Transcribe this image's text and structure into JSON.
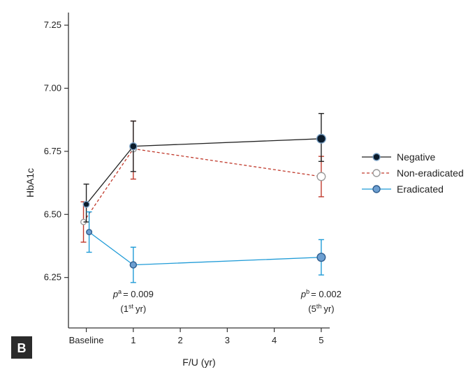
{
  "panel_letter": "B",
  "colors": {
    "negative": "#222222",
    "non_eradicated": "#c0392b",
    "eradicated": "#1f9bd7",
    "axis": "#333333"
  },
  "chart_data": {
    "type": "line",
    "xlabel": "F/U (yr)",
    "ylabel": "HbA1c",
    "x_ticks": [
      {
        "x": 0,
        "label": "Baseline"
      },
      {
        "x": 1,
        "label": "1"
      },
      {
        "x": 2,
        "label": "2"
      },
      {
        "x": 3,
        "label": "3"
      },
      {
        "x": 4,
        "label": "4"
      },
      {
        "x": 5,
        "label": "5"
      }
    ],
    "y_ticks": [
      "6.25",
      "6.50",
      "6.75",
      "7.00",
      "7.25"
    ],
    "ylim": [
      6.05,
      7.3
    ],
    "xlim": [
      -0.38,
      5.18
    ],
    "legend_position": "right",
    "series": [
      {
        "name": "Negative",
        "style": "solid",
        "marker": "filled-dark",
        "x": [
          0,
          1,
          5
        ],
        "y": [
          6.54,
          6.77,
          6.8
        ],
        "err_low": [
          6.47,
          6.67,
          6.71
        ],
        "err_high": [
          6.62,
          6.87,
          6.9
        ]
      },
      {
        "name": "Non-eradicated",
        "style": "dashed",
        "marker": "open",
        "x": [
          0,
          1,
          5
        ],
        "y": [
          6.47,
          6.76,
          6.65
        ],
        "err_low": [
          6.39,
          6.64,
          6.57
        ],
        "err_high": [
          6.55,
          6.87,
          6.73
        ]
      },
      {
        "name": "Eradicated",
        "style": "solid",
        "marker": "filled-blue",
        "x": [
          0,
          1,
          5
        ],
        "y": [
          6.43,
          6.3,
          6.33
        ],
        "err_low": [
          6.35,
          6.23,
          6.26
        ],
        "err_high": [
          6.51,
          6.37,
          6.4
        ]
      }
    ],
    "annotations": [
      {
        "x": 1,
        "p_sup": "a",
        "p_value": "= 0.009",
        "period_num": "1",
        "period_sup": "st",
        "period_unit": "yr"
      },
      {
        "x": 5,
        "p_sup": "b",
        "p_value": "= 0.002",
        "period_num": "5",
        "period_sup": "th",
        "period_unit": "yr"
      }
    ]
  }
}
